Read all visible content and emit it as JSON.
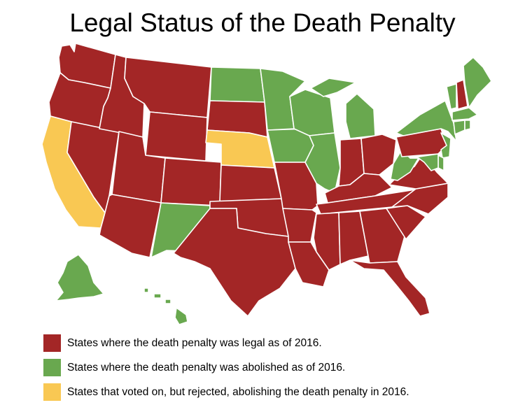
{
  "title": "Legal Status of the Death Penalty",
  "colors": {
    "legal": "#a32626",
    "abolished": "#69a84f",
    "rejected": "#f9c853"
  },
  "legend": [
    {
      "status": "legal",
      "label": "States where the death penalty was legal as of 2016."
    },
    {
      "status": "abolished",
      "label": "States where the death penalty was abolished as of 2016."
    },
    {
      "status": "rejected",
      "label": "States that voted on, but rejected, abolishing the death penalty in 2016."
    }
  ],
  "states": [
    {
      "id": "WA",
      "status": "legal"
    },
    {
      "id": "OR",
      "status": "legal"
    },
    {
      "id": "CA",
      "status": "rejected"
    },
    {
      "id": "NV",
      "status": "legal"
    },
    {
      "id": "ID",
      "status": "legal"
    },
    {
      "id": "MT",
      "status": "legal"
    },
    {
      "id": "WY",
      "status": "legal"
    },
    {
      "id": "UT",
      "status": "legal"
    },
    {
      "id": "AZ",
      "status": "legal"
    },
    {
      "id": "CO",
      "status": "legal"
    },
    {
      "id": "NM",
      "status": "abolished"
    },
    {
      "id": "ND",
      "status": "abolished"
    },
    {
      "id": "SD",
      "status": "legal"
    },
    {
      "id": "NE",
      "status": "rejected"
    },
    {
      "id": "KS",
      "status": "legal"
    },
    {
      "id": "OK",
      "status": "legal"
    },
    {
      "id": "TX",
      "status": "legal"
    },
    {
      "id": "MN",
      "status": "abolished"
    },
    {
      "id": "IA",
      "status": "abolished"
    },
    {
      "id": "MO",
      "status": "legal"
    },
    {
      "id": "AR",
      "status": "legal"
    },
    {
      "id": "LA",
      "status": "legal"
    },
    {
      "id": "WI",
      "status": "abolished"
    },
    {
      "id": "IL",
      "status": "abolished"
    },
    {
      "id": "MI",
      "status": "abolished"
    },
    {
      "id": "IN",
      "status": "legal"
    },
    {
      "id": "OH",
      "status": "legal"
    },
    {
      "id": "KY",
      "status": "legal"
    },
    {
      "id": "TN",
      "status": "legal"
    },
    {
      "id": "MS",
      "status": "legal"
    },
    {
      "id": "AL",
      "status": "legal"
    },
    {
      "id": "GA",
      "status": "legal"
    },
    {
      "id": "FL",
      "status": "legal"
    },
    {
      "id": "SC",
      "status": "legal"
    },
    {
      "id": "NC",
      "status": "legal"
    },
    {
      "id": "VA",
      "status": "legal"
    },
    {
      "id": "WV",
      "status": "abolished"
    },
    {
      "id": "PA",
      "status": "legal"
    },
    {
      "id": "NY",
      "status": "abolished"
    },
    {
      "id": "VT",
      "status": "abolished"
    },
    {
      "id": "NH",
      "status": "legal"
    },
    {
      "id": "ME",
      "status": "abolished"
    },
    {
      "id": "MA",
      "status": "abolished"
    },
    {
      "id": "CT",
      "status": "abolished"
    },
    {
      "id": "RI",
      "status": "abolished"
    },
    {
      "id": "NJ",
      "status": "abolished"
    },
    {
      "id": "DE",
      "status": "abolished"
    },
    {
      "id": "MD",
      "status": "abolished"
    },
    {
      "id": "AK",
      "status": "abolished"
    },
    {
      "id": "HI",
      "status": "abolished"
    }
  ]
}
